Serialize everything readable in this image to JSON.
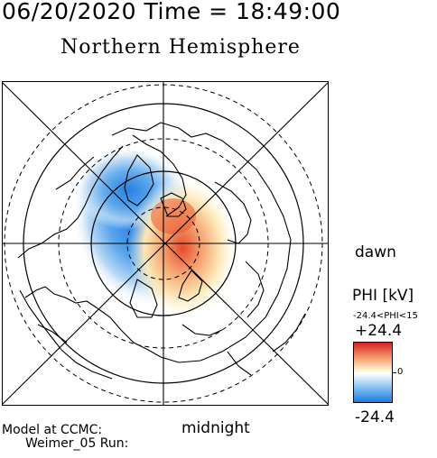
{
  "header": {
    "datetime": "06/20/2020 Time = 18:49:00",
    "hemisphere": "Northern Hemisphere"
  },
  "map": {
    "projection": "polar stereographic, north pole at center",
    "orientation": {
      "right": "dawn",
      "bottom": "midnight"
    },
    "grid": "latitude circles solid/dashed, meridian lines every 45 degrees",
    "potential_pattern": "negative cell (blue) on dusk/noon side, positive cell (red/yellow) near pole extending to midnight/dawn"
  },
  "labels": {
    "dawn": "dawn",
    "midnight": "midnight"
  },
  "colorbar": {
    "title": "PHI [kV]",
    "range_text": "-24.4<PHI<15",
    "max": "+24.4",
    "zero": "0",
    "min": "-24.4",
    "colors": {
      "high": "#d62020",
      "mid": "#ffffff",
      "low": "#1d7ce0"
    }
  },
  "footer": {
    "model_line": "Model at CCMC:",
    "run_line": "Weimer_05 Run:"
  }
}
